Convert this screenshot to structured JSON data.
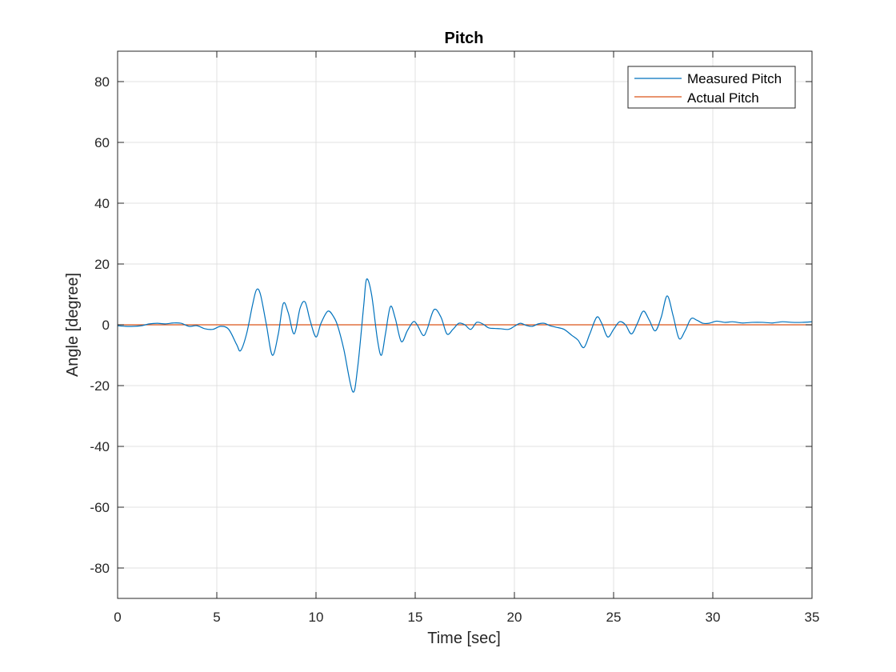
{
  "chart_data": {
    "type": "line",
    "title": "Pitch",
    "xlabel": "Time [sec]",
    "ylabel": "Angle [degree]",
    "xlim": [
      0,
      35
    ],
    "ylim": [
      -90,
      90
    ],
    "xticks": [
      0,
      5,
      10,
      15,
      20,
      25,
      30,
      35
    ],
    "yticks": [
      -80,
      -60,
      -40,
      -20,
      0,
      20,
      40,
      60,
      80
    ],
    "grid": true,
    "legend_position": "top-right",
    "series": [
      {
        "name": "Measured Pitch",
        "color": "#0072BD",
        "x": [
          0,
          0.4,
          0.8,
          1.2,
          1.6,
          2.0,
          2.4,
          2.8,
          3.2,
          3.6,
          4.0,
          4.4,
          4.8,
          5.2,
          5.6,
          6.0,
          6.2,
          6.5,
          6.8,
          7.0,
          7.2,
          7.5,
          7.8,
          8.1,
          8.35,
          8.6,
          8.9,
          9.2,
          9.45,
          9.7,
          10.0,
          10.25,
          10.6,
          10.9,
          11.1,
          11.4,
          11.85,
          12.1,
          12.4,
          12.55,
          12.8,
          13.1,
          13.3,
          13.5,
          13.75,
          14.0,
          14.3,
          14.6,
          14.9,
          15.1,
          15.4,
          15.6,
          15.95,
          16.3,
          16.6,
          16.9,
          17.2,
          17.5,
          17.8,
          18.1,
          18.4,
          18.7,
          19.0,
          19.3,
          19.7,
          20.0,
          20.3,
          20.6,
          20.9,
          21.2,
          21.5,
          21.8,
          22.1,
          22.5,
          22.9,
          23.2,
          23.5,
          23.8,
          24.15,
          24.4,
          24.7,
          25.0,
          25.3,
          25.6,
          25.9,
          26.2,
          26.5,
          26.8,
          27.1,
          27.4,
          27.7,
          28.0,
          28.3,
          28.6,
          28.9,
          29.2,
          29.5,
          29.8,
          30.2,
          30.6,
          31.0,
          31.5,
          32.0,
          32.5,
          33.0,
          33.5,
          34.0,
          34.5,
          35.0
        ],
        "values": [
          -0.3,
          -0.5,
          -0.5,
          -0.3,
          0.3,
          0.5,
          0.3,
          0.6,
          0.5,
          -0.5,
          -0.3,
          -1.3,
          -1.5,
          -0.5,
          -1.5,
          -6.5,
          -8.5,
          -3.0,
          6.5,
          11.5,
          10.0,
          0.0,
          -10.0,
          -3.0,
          7.0,
          4.0,
          -3.0,
          5.5,
          7.5,
          1.5,
          -4.0,
          0.5,
          4.5,
          2.5,
          -0.5,
          -8.0,
          -22.0,
          -14.0,
          6.0,
          15.0,
          10.0,
          -5.0,
          -10.0,
          -3.0,
          6.0,
          2.0,
          -5.5,
          -2.0,
          1.0,
          0.0,
          -3.5,
          -1.5,
          5.0,
          2.5,
          -3.0,
          -1.5,
          0.5,
          0.0,
          -1.5,
          0.8,
          0.3,
          -1.0,
          -1.2,
          -1.3,
          -1.5,
          -0.5,
          0.5,
          -0.2,
          -0.5,
          0.3,
          0.5,
          -0.3,
          -0.8,
          -1.5,
          -3.5,
          -5.0,
          -7.5,
          -3.0,
          2.5,
          0.5,
          -4.0,
          -1.5,
          1.0,
          0.0,
          -3.0,
          0.5,
          4.5,
          1.5,
          -2.0,
          2.5,
          9.5,
          3.0,
          -4.5,
          -2.0,
          2.0,
          1.5,
          0.5,
          0.5,
          1.2,
          0.8,
          1.0,
          0.6,
          0.8,
          0.8,
          0.6,
          1.0,
          0.8,
          0.8,
          1.0
        ]
      },
      {
        "name": "Actual Pitch",
        "color": "#D95319",
        "x": [
          0,
          35
        ],
        "values": [
          0,
          0
        ]
      }
    ]
  }
}
